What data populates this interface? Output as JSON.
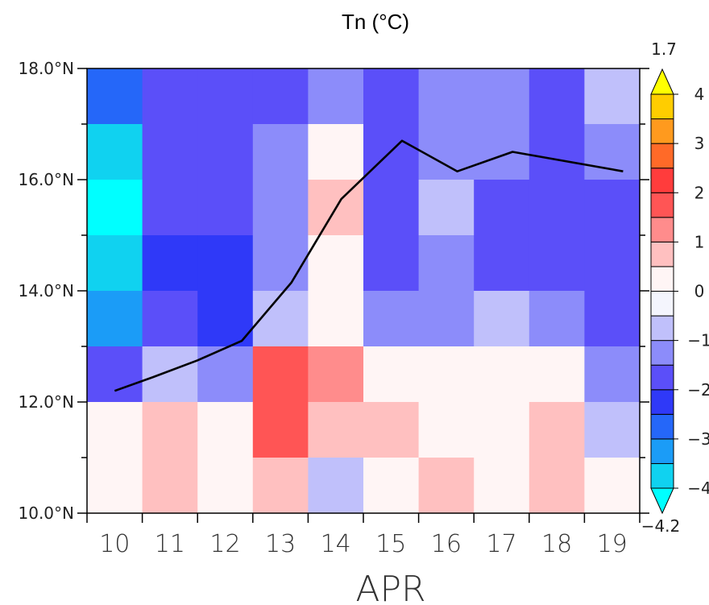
{
  "chart_data": {
    "type": "heatmap",
    "title": "Tn (°C)",
    "xlabel": "APR",
    "x": [
      "10",
      "11",
      "12",
      "13",
      "14",
      "15",
      "16",
      "17",
      "18",
      "19"
    ],
    "y_ticks": [
      "10.0°N",
      "12.0°N",
      "14.0°N",
      "16.0°N",
      "18.0°N"
    ],
    "ylim": [
      10,
      18
    ],
    "y_cell_centers": [
      10.5,
      11.5,
      12.5,
      13.5,
      14.5,
      15.5,
      16.5,
      17.5
    ],
    "values_rows_top_to_bottom": [
      [
        -3.0,
        -2.0,
        -2.0,
        -1.75,
        -1.25,
        -2.0,
        -1.25,
        -1.25,
        -1.75,
        -0.75
      ],
      [
        -3.75,
        -1.75,
        -2.0,
        -1.25,
        0.0,
        -1.75,
        -1.25,
        -1.25,
        -2.0,
        -1.25
      ],
      [
        -4.25,
        -1.75,
        -2.0,
        -1.25,
        0.75,
        -1.75,
        -0.75,
        -1.75,
        -1.75,
        -1.75
      ],
      [
        -3.75,
        -2.5,
        -2.5,
        -1.25,
        0.0,
        -2.0,
        -1.25,
        -1.75,
        -2.0,
        -1.75
      ],
      [
        -3.25,
        -2.0,
        -2.5,
        -0.75,
        0.25,
        -1.25,
        -1.25,
        -0.75,
        -1.25,
        -2.0
      ],
      [
        -2.0,
        -0.75,
        -1.25,
        1.75,
        1.25,
        0.25,
        0.0,
        0.0,
        0.25,
        -1.25
      ],
      [
        0.0,
        0.75,
        0.25,
        1.75,
        0.75,
        0.75,
        0.25,
        0.0,
        0.75,
        -0.75
      ],
      [
        0.0,
        0.75,
        0.0,
        0.75,
        -0.75,
        0.25,
        0.75,
        0.25,
        0.75,
        0.0
      ]
    ],
    "line": {
      "x": [
        10,
        10.7,
        11.5,
        12.3,
        13.2,
        14.1,
        15.2,
        16.2,
        17.2,
        19.2
      ],
      "y": [
        12.2,
        12.45,
        12.75,
        13.1,
        14.15,
        15.65,
        16.7,
        16.15,
        16.5,
        16.15
      ]
    },
    "colorbar": {
      "levels": [
        -4,
        -3.5,
        -3,
        -2.5,
        -2,
        -1.5,
        -1,
        -0.5,
        0,
        0.5,
        1,
        1.5,
        2,
        2.5,
        3,
        3.5,
        4
      ],
      "tick_labels": [
        "4",
        "3",
        "2",
        "1",
        "0",
        "−1",
        "−2",
        "−3",
        "−4"
      ],
      "max_label": "1.7",
      "min_label": "−4.2",
      "colors": [
        "#00ffff",
        "#10d2f0",
        "#1b9cf7",
        "#2567f9",
        "#2f39f8",
        "#5b4ff9",
        "#8c8cfa",
        "#c0c0fb",
        "#f4f5fd",
        "#fff5f5",
        "#ffc0c0",
        "#ff8c8c",
        "#ff5555",
        "#ff3c3c",
        "#ff6a28",
        "#ff9a1e",
        "#ffcd00",
        "#ffff00"
      ]
    }
  }
}
